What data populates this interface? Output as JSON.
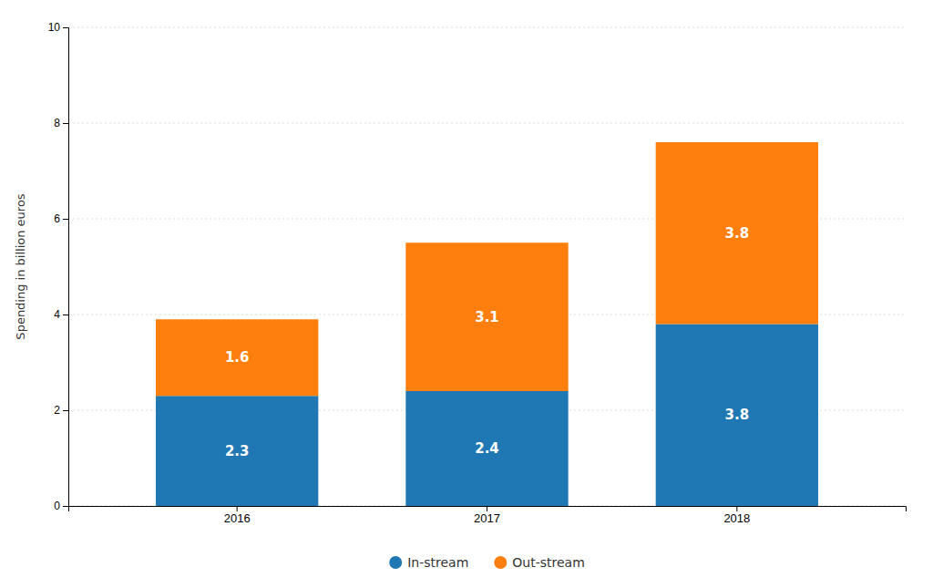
{
  "chart_data": {
    "type": "bar",
    "categories": [
      "2016",
      "2017",
      "2018"
    ],
    "series": [
      {
        "name": "In-stream",
        "values": [
          2.3,
          2.4,
          3.8
        ]
      },
      {
        "name": "Out-stream",
        "values": [
          1.6,
          3.1,
          3.8
        ]
      }
    ],
    "ylabel": "Spending in billion euros",
    "ylim": [
      0,
      10
    ],
    "yticks": [
      0,
      2,
      4,
      6,
      8,
      10
    ],
    "stacked": true,
    "data_labels": true,
    "grid": true,
    "legend": "bottom"
  }
}
